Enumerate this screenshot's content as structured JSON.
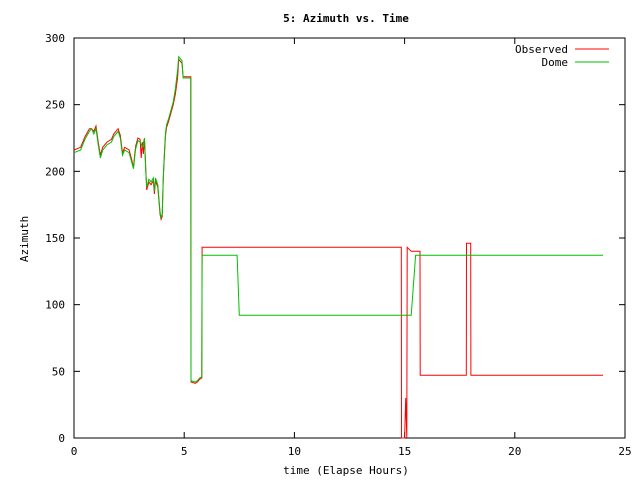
{
  "chart_data": {
    "type": "line",
    "title": "5: Azimuth vs. Time",
    "xlabel": "time (Elapse Hours)",
    "ylabel": "Azimuth",
    "xlim": [
      0,
      25
    ],
    "ylim": [
      0,
      300
    ],
    "xticks": [
      0,
      5,
      10,
      15,
      20,
      25
    ],
    "yticks": [
      0,
      50,
      100,
      150,
      200,
      250,
      300
    ],
    "grid": false,
    "legend_position": "top-right",
    "series": [
      {
        "name": "Observed",
        "color": "#ff0000",
        "points": [
          [
            0.0,
            216
          ],
          [
            0.3,
            218
          ],
          [
            0.5,
            226
          ],
          [
            0.7,
            232
          ],
          [
            0.8,
            232
          ],
          [
            0.9,
            230
          ],
          [
            1.0,
            234
          ],
          [
            1.1,
            222
          ],
          [
            1.2,
            212
          ],
          [
            1.3,
            218
          ],
          [
            1.5,
            222
          ],
          [
            1.7,
            224
          ],
          [
            1.8,
            228
          ],
          [
            1.9,
            230
          ],
          [
            2.0,
            232
          ],
          [
            2.1,
            227
          ],
          [
            2.2,
            214
          ],
          [
            2.3,
            218
          ],
          [
            2.5,
            216
          ],
          [
            2.6,
            210
          ],
          [
            2.7,
            203
          ],
          [
            2.75,
            212
          ],
          [
            2.8,
            219
          ],
          [
            2.9,
            225
          ],
          [
            3.0,
            224
          ],
          [
            3.05,
            210
          ],
          [
            3.1,
            222
          ],
          [
            3.15,
            213
          ],
          [
            3.2,
            224
          ],
          [
            3.3,
            186
          ],
          [
            3.4,
            192
          ],
          [
            3.5,
            190
          ],
          [
            3.6,
            193
          ],
          [
            3.65,
            183
          ],
          [
            3.7,
            193
          ],
          [
            3.8,
            188
          ],
          [
            3.9,
            168
          ],
          [
            3.95,
            164
          ],
          [
            4.0,
            166
          ],
          [
            4.05,
            195
          ],
          [
            4.1,
            212
          ],
          [
            4.15,
            227
          ],
          [
            4.2,
            233
          ],
          [
            4.3,
            238
          ],
          [
            4.4,
            244
          ],
          [
            4.5,
            250
          ],
          [
            4.6,
            258
          ],
          [
            4.7,
            270
          ],
          [
            4.75,
            284
          ],
          [
            4.8,
            283
          ],
          [
            4.9,
            281
          ],
          [
            4.95,
            271
          ],
          [
            5.3,
            271
          ],
          [
            5.31,
            42
          ],
          [
            5.5,
            41
          ],
          [
            5.6,
            42
          ],
          [
            5.7,
            44
          ],
          [
            5.8,
            45
          ],
          [
            5.81,
            143
          ],
          [
            14.85,
            143
          ],
          [
            14.86,
            0
          ],
          [
            15.0,
            0
          ],
          [
            15.05,
            30
          ],
          [
            15.1,
            0
          ],
          [
            15.12,
            143
          ],
          [
            15.3,
            140
          ],
          [
            15.7,
            140
          ],
          [
            15.71,
            47
          ],
          [
            17.8,
            47
          ],
          [
            17.81,
            146
          ],
          [
            18.0,
            146
          ],
          [
            18.01,
            47
          ],
          [
            24.0,
            47
          ]
        ]
      },
      {
        "name": "Dome",
        "color": "#00c000",
        "points": [
          [
            0.0,
            214
          ],
          [
            0.3,
            216
          ],
          [
            0.5,
            224
          ],
          [
            0.7,
            230
          ],
          [
            0.8,
            232
          ],
          [
            0.9,
            228
          ],
          [
            1.0,
            232
          ],
          [
            1.1,
            220
          ],
          [
            1.2,
            210
          ],
          [
            1.3,
            216
          ],
          [
            1.5,
            220
          ],
          [
            1.7,
            222
          ],
          [
            1.8,
            226
          ],
          [
            1.9,
            228
          ],
          [
            2.0,
            230
          ],
          [
            2.1,
            225
          ],
          [
            2.2,
            212
          ],
          [
            2.3,
            216
          ],
          [
            2.5,
            214
          ],
          [
            2.6,
            208
          ],
          [
            2.7,
            202
          ],
          [
            2.75,
            210
          ],
          [
            2.8,
            217
          ],
          [
            2.9,
            223
          ],
          [
            3.0,
            222
          ],
          [
            3.1,
            218
          ],
          [
            3.2,
            225
          ],
          [
            3.25,
            202
          ],
          [
            3.3,
            188
          ],
          [
            3.4,
            194
          ],
          [
            3.5,
            192
          ],
          [
            3.6,
            195
          ],
          [
            3.65,
            185
          ],
          [
            3.7,
            195
          ],
          [
            3.8,
            190
          ],
          [
            3.9,
            170
          ],
          [
            3.95,
            165
          ],
          [
            4.0,
            168
          ],
          [
            4.05,
            196
          ],
          [
            4.1,
            214
          ],
          [
            4.15,
            229
          ],
          [
            4.2,
            235
          ],
          [
            4.3,
            240
          ],
          [
            4.4,
            246
          ],
          [
            4.5,
            252
          ],
          [
            4.6,
            262
          ],
          [
            4.7,
            276
          ],
          [
            4.75,
            286
          ],
          [
            4.8,
            285
          ],
          [
            4.9,
            283
          ],
          [
            4.95,
            270
          ],
          [
            5.3,
            270
          ],
          [
            5.31,
            43
          ],
          [
            5.5,
            42
          ],
          [
            5.6,
            43
          ],
          [
            5.7,
            45
          ],
          [
            5.8,
            46
          ],
          [
            5.81,
            137
          ],
          [
            7.4,
            137
          ],
          [
            7.5,
            92
          ],
          [
            15.3,
            92
          ],
          [
            15.5,
            137
          ],
          [
            24.0,
            137
          ]
        ]
      }
    ]
  }
}
